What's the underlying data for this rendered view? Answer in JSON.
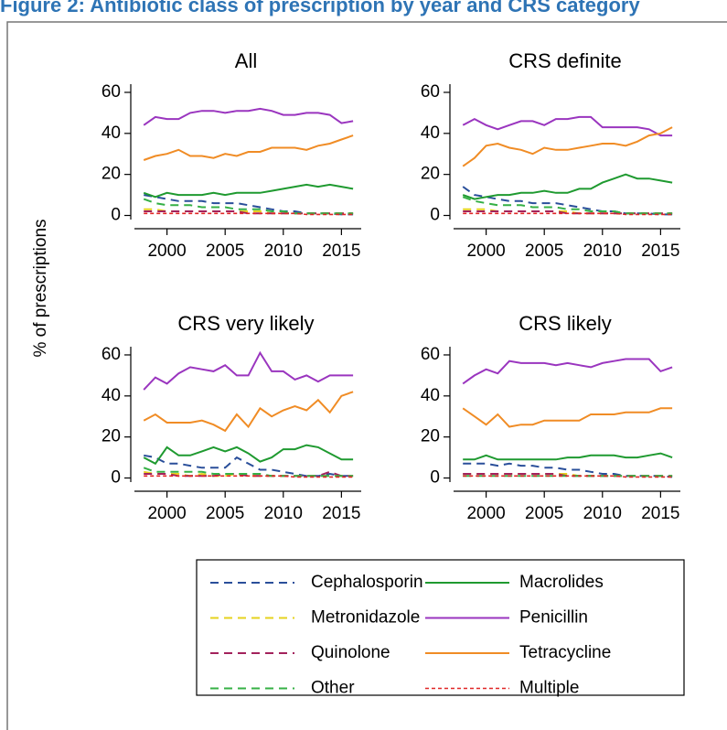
{
  "title": "Figure 2: Antibiotic class of prescription by year and CRS category",
  "y_label": "% of prescriptions",
  "legend": [
    {
      "name": "Cephalosporin",
      "color": "#2a4f9a",
      "style": "dashed"
    },
    {
      "name": "Macrolides",
      "color": "#1f9a30",
      "style": "solid"
    },
    {
      "name": "Metronidazole",
      "color": "#e6d21e",
      "style": "dashed"
    },
    {
      "name": "Penicillin",
      "color": "#9a35bf",
      "style": "solid"
    },
    {
      "name": "Quinolone",
      "color": "#a3225c",
      "style": "dashed"
    },
    {
      "name": "Tetracycline",
      "color": "#f08c25",
      "style": "solid"
    },
    {
      "name": "Other",
      "color": "#35b045",
      "style": "dashed"
    },
    {
      "name": "Multiple",
      "color": "#e02525",
      "style": "dotted"
    }
  ],
  "chart_data": [
    {
      "type": "line",
      "title": "All",
      "x": [
        1998,
        1999,
        2000,
        2001,
        2002,
        2003,
        2004,
        2005,
        2006,
        2007,
        2008,
        2009,
        2010,
        2011,
        2012,
        2013,
        2014,
        2015,
        2016
      ],
      "xlim": [
        1997.2,
        2016.7
      ],
      "xticks": [
        2000,
        2005,
        2010,
        2015
      ],
      "ylim": [
        -2,
        64
      ],
      "yticks": [
        0,
        20,
        40,
        60
      ],
      "series": [
        {
          "values": [
            10,
            9,
            8,
            7,
            7,
            7,
            6,
            6,
            6,
            5,
            4,
            3,
            2,
            2,
            1,
            1,
            1,
            0.5,
            0.5
          ]
        },
        {
          "values": [
            11,
            9,
            11,
            10,
            10,
            10,
            11,
            10,
            11,
            11,
            11,
            12,
            13,
            14,
            15,
            14,
            15,
            14,
            13
          ]
        },
        {
          "values": [
            3,
            3,
            2,
            2,
            2,
            2,
            2,
            2,
            2,
            2,
            2,
            1,
            1,
            1,
            1,
            1,
            1,
            1,
            1
          ]
        },
        {
          "values": [
            44,
            48,
            47,
            47,
            50,
            51,
            51,
            50,
            51,
            51,
            52,
            51,
            49,
            49,
            50,
            50,
            49,
            45,
            46
          ]
        },
        {
          "values": [
            2,
            2,
            2,
            2,
            2,
            2,
            2,
            2,
            2,
            1,
            1,
            1,
            1,
            1,
            1,
            1,
            1,
            1,
            1
          ]
        },
        {
          "values": [
            27,
            29,
            30,
            32,
            29,
            29,
            28,
            30,
            29,
            31,
            31,
            33,
            33,
            33,
            32,
            34,
            35,
            37,
            39
          ]
        },
        {
          "values": [
            8,
            6,
            5,
            5,
            5,
            4,
            4,
            4,
            3,
            3,
            3,
            2,
            2,
            1,
            1,
            1,
            1,
            1,
            1
          ]
        },
        {
          "values": [
            1,
            1,
            1,
            1,
            1,
            1,
            1,
            1,
            1,
            1,
            1,
            1,
            1,
            1,
            0.5,
            0.5,
            0.5,
            0.5,
            0.5
          ]
        }
      ]
    },
    {
      "type": "line",
      "title": "CRS definite",
      "x": [
        1998,
        1999,
        2000,
        2001,
        2002,
        2003,
        2004,
        2005,
        2006,
        2007,
        2008,
        2009,
        2010,
        2011,
        2012,
        2013,
        2014,
        2015,
        2016
      ],
      "xlim": [
        1997.2,
        2016.7
      ],
      "xticks": [
        2000,
        2005,
        2010,
        2015
      ],
      "ylim": [
        -2,
        64
      ],
      "yticks": [
        0,
        20,
        40,
        60
      ],
      "series": [
        {
          "values": [
            14,
            10,
            9,
            8,
            7,
            7,
            6,
            6,
            6,
            5,
            4,
            3,
            2,
            2,
            1,
            1,
            1,
            0.5,
            0.5
          ]
        },
        {
          "values": [
            10,
            8,
            9,
            10,
            10,
            11,
            11,
            12,
            11,
            11,
            13,
            13,
            16,
            18,
            20,
            18,
            18,
            17,
            16
          ]
        },
        {
          "values": [
            3,
            3,
            3,
            2,
            2,
            2,
            2,
            2,
            2,
            2,
            1,
            1,
            1,
            1,
            1,
            1,
            1,
            1,
            1
          ]
        },
        {
          "values": [
            44,
            47,
            44,
            42,
            44,
            46,
            46,
            44,
            47,
            47,
            48,
            48,
            43,
            43,
            43,
            43,
            42,
            39,
            39
          ]
        },
        {
          "values": [
            2,
            2,
            2,
            2,
            2,
            2,
            2,
            2,
            2,
            1,
            1,
            1,
            1,
            1,
            1,
            1,
            1,
            1,
            1
          ]
        },
        {
          "values": [
            24,
            28,
            34,
            35,
            33,
            32,
            30,
            33,
            32,
            32,
            33,
            34,
            35,
            35,
            34,
            36,
            39,
            40,
            43
          ]
        },
        {
          "values": [
            9,
            7,
            6,
            5,
            5,
            5,
            4,
            4,
            4,
            3,
            3,
            2,
            2,
            2,
            1,
            1,
            1,
            1,
            1
          ]
        },
        {
          "values": [
            1,
            1,
            1,
            1,
            1,
            1,
            1,
            1,
            1,
            1,
            1,
            1,
            1,
            1,
            0.5,
            0.5,
            0.5,
            0.5,
            0.5
          ]
        }
      ]
    },
    {
      "type": "line",
      "title": "CRS very likely",
      "x": [
        1998,
        1999,
        2000,
        2001,
        2002,
        2003,
        2004,
        2005,
        2006,
        2007,
        2008,
        2009,
        2010,
        2011,
        2012,
        2013,
        2014,
        2015,
        2016
      ],
      "xlim": [
        1997.2,
        2016.7
      ],
      "xticks": [
        2000,
        2005,
        2010,
        2015
      ],
      "ylim": [
        -2,
        64
      ],
      "yticks": [
        0,
        20,
        40,
        60
      ],
      "series": [
        {
          "values": [
            11,
            10,
            7,
            7,
            6,
            5,
            5,
            5,
            10,
            7,
            4,
            4,
            3,
            2,
            1,
            1,
            2,
            1,
            1
          ]
        },
        {
          "values": [
            10,
            7,
            15,
            11,
            11,
            13,
            15,
            13,
            15,
            12,
            8,
            10,
            14,
            14,
            16,
            15,
            12,
            9,
            9
          ]
        },
        {
          "values": [
            3,
            2,
            2,
            2,
            1,
            2,
            1,
            1,
            2,
            1,
            1,
            1,
            1,
            1,
            1,
            1,
            1,
            1,
            1
          ]
        },
        {
          "values": [
            43,
            49,
            46,
            51,
            54,
            53,
            52,
            55,
            50,
            50,
            61,
            52,
            52,
            48,
            50,
            47,
            50,
            50,
            50
          ]
        },
        {
          "values": [
            2,
            2,
            2,
            1,
            1,
            1,
            1,
            2,
            2,
            1,
            1,
            1,
            1,
            1,
            1,
            1,
            3,
            1,
            1
          ]
        },
        {
          "values": [
            28,
            31,
            27,
            27,
            27,
            28,
            26,
            23,
            31,
            25,
            34,
            30,
            33,
            35,
            33,
            38,
            32,
            40,
            42
          ]
        },
        {
          "values": [
            5,
            3,
            3,
            3,
            3,
            3,
            2,
            2,
            2,
            2,
            2,
            1,
            1,
            1,
            1,
            1,
            1,
            1,
            1
          ]
        },
        {
          "values": [
            1,
            1,
            1,
            1,
            1,
            1,
            1,
            1,
            1,
            1,
            1,
            1,
            1,
            0.5,
            0.5,
            0.5,
            0.5,
            0.5,
            0.5
          ]
        }
      ]
    },
    {
      "type": "line",
      "title": "CRS likely",
      "x": [
        1998,
        1999,
        2000,
        2001,
        2002,
        2003,
        2004,
        2005,
        2006,
        2007,
        2008,
        2009,
        2010,
        2011,
        2012,
        2013,
        2014,
        2015,
        2016
      ],
      "xlim": [
        1997.2,
        2016.7
      ],
      "xticks": [
        2000,
        2005,
        2010,
        2015
      ],
      "ylim": [
        -2,
        64
      ],
      "yticks": [
        0,
        20,
        40,
        60
      ],
      "series": [
        {
          "values": [
            7,
            7,
            7,
            6,
            7,
            6,
            6,
            5,
            5,
            4,
            4,
            3,
            2,
            2,
            1,
            1,
            1,
            1,
            0.5
          ]
        },
        {
          "values": [
            9,
            9,
            11,
            9,
            9,
            9,
            9,
            9,
            9,
            10,
            10,
            11,
            11,
            11,
            10,
            10,
            11,
            12,
            10
          ]
        },
        {
          "values": [
            2,
            2,
            2,
            2,
            2,
            2,
            2,
            2,
            2,
            2,
            1,
            1,
            1,
            1,
            1,
            1,
            1,
            1,
            1
          ]
        },
        {
          "values": [
            46,
            50,
            53,
            51,
            57,
            56,
            56,
            56,
            55,
            56,
            55,
            54,
            56,
            57,
            58,
            58,
            58,
            52,
            54
          ]
        },
        {
          "values": [
            2,
            2,
            2,
            2,
            2,
            2,
            2,
            2,
            2,
            1,
            1,
            1,
            1,
            1,
            1,
            1,
            1,
            1,
            1
          ]
        },
        {
          "values": [
            34,
            30,
            26,
            31,
            25,
            26,
            26,
            28,
            28,
            28,
            28,
            31,
            31,
            31,
            32,
            32,
            32,
            34,
            34
          ]
        },
        {
          "values": [
            1,
            1,
            1,
            1,
            1,
            1,
            1,
            1,
            1,
            1,
            1,
            1,
            1,
            1,
            1,
            1,
            1,
            1,
            1
          ]
        },
        {
          "values": [
            1,
            1,
            1,
            1,
            1,
            1,
            1,
            1,
            1,
            1,
            1,
            1,
            1,
            1,
            0.5,
            0.5,
            0.5,
            0.5,
            0.5
          ]
        }
      ]
    }
  ]
}
